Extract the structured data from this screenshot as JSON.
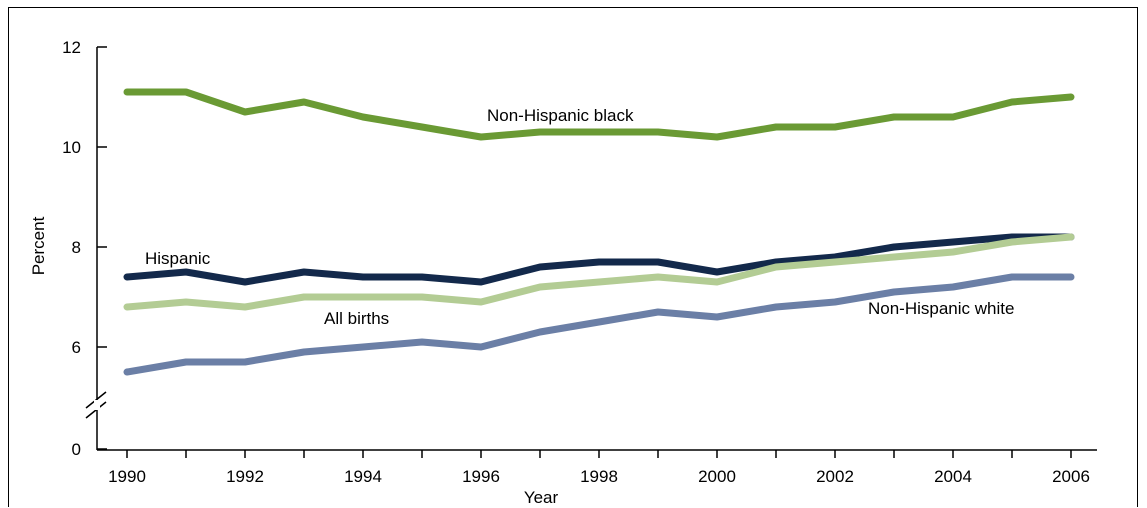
{
  "chart_data": {
    "type": "line",
    "xlabel": "Year",
    "ylabel": "Percent",
    "x": [
      1990,
      1991,
      1992,
      1993,
      1994,
      1995,
      1996,
      1997,
      1998,
      1999,
      2000,
      2001,
      2002,
      2003,
      2004,
      2005,
      2006
    ],
    "x_tick_labels": [
      "1990",
      "1992",
      "1994",
      "1996",
      "1998",
      "2000",
      "2002",
      "2004",
      "2006"
    ],
    "y_tick_labels": [
      "0",
      "6",
      "8",
      "10",
      "12"
    ],
    "y_axis_break": "between 0 and 6",
    "ylim": [
      5,
      12
    ],
    "grid": false,
    "series": [
      {
        "name": "Non-Hispanic black",
        "color": "#6a9a34",
        "values": [
          11.1,
          11.1,
          10.7,
          10.9,
          10.6,
          10.4,
          10.2,
          10.3,
          10.3,
          10.3,
          10.2,
          10.4,
          10.4,
          10.6,
          10.6,
          10.9,
          11.0
        ]
      },
      {
        "name": "Hispanic",
        "color": "#13294b",
        "values": [
          7.4,
          7.5,
          7.3,
          7.5,
          7.4,
          7.4,
          7.3,
          7.6,
          7.7,
          7.7,
          7.5,
          7.7,
          7.8,
          8.0,
          8.1,
          8.2,
          8.2
        ]
      },
      {
        "name": "All births",
        "color": "#b3cc94",
        "values": [
          6.8,
          6.9,
          6.8,
          7.0,
          7.0,
          7.0,
          6.9,
          7.2,
          7.3,
          7.4,
          7.3,
          7.6,
          7.7,
          7.8,
          7.9,
          8.1,
          8.2
        ]
      },
      {
        "name": "Non-Hispanic white",
        "color": "#6b7fa6",
        "values": [
          5.5,
          5.7,
          5.7,
          5.9,
          6.0,
          6.1,
          6.0,
          6.3,
          6.5,
          6.7,
          6.6,
          6.8,
          6.9,
          7.1,
          7.2,
          7.4,
          7.4
        ]
      }
    ]
  }
}
